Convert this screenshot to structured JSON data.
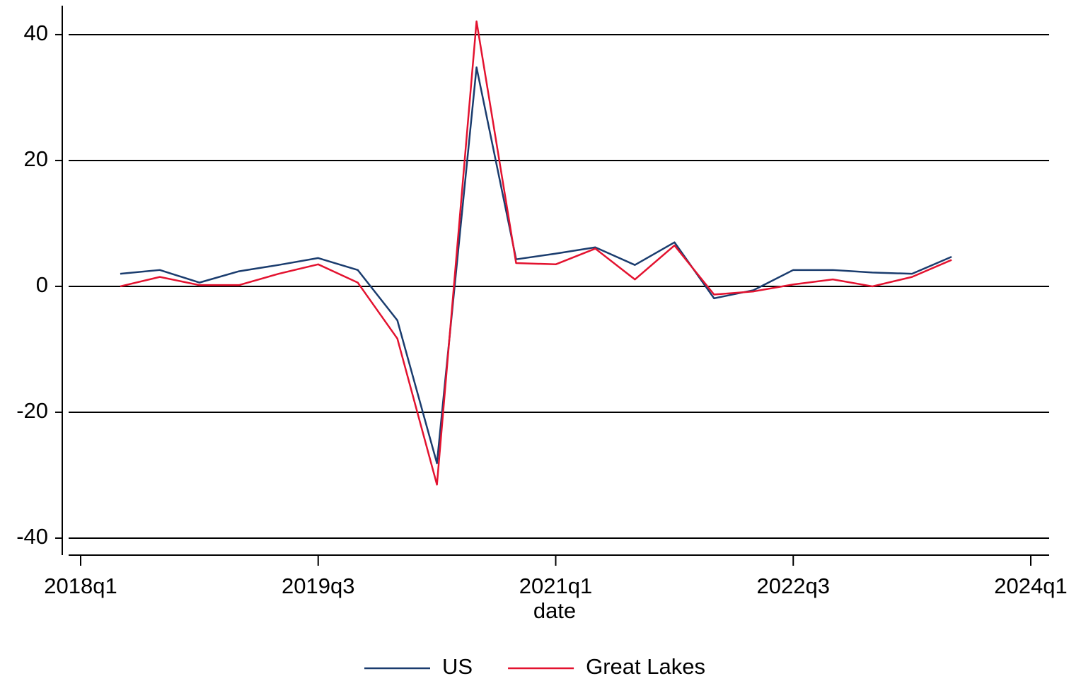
{
  "chart_data": {
    "type": "line",
    "x_label": "date",
    "x": [
      "2018q2",
      "2018q3",
      "2018q4",
      "2019q1",
      "2019q2",
      "2019q3",
      "2019q4",
      "2020q1",
      "2020q2",
      "2020q3",
      "2020q4",
      "2021q1",
      "2021q2",
      "2021q3",
      "2021q4",
      "2022q1",
      "2022q2",
      "2022q3",
      "2022q4",
      "2023q1",
      "2023q2",
      "2023q3"
    ],
    "series": [
      {
        "name": "US",
        "color": "#1a3c6e",
        "values": [
          2.0,
          2.6,
          0.6,
          2.4,
          3.4,
          4.5,
          2.6,
          -5.4,
          -28.1,
          34.8,
          4.3,
          5.2,
          6.2,
          3.4,
          7.0,
          -1.9,
          -0.6,
          2.6,
          2.6,
          2.2,
          2.0,
          4.7
        ]
      },
      {
        "name": "Great Lakes",
        "color": "#e3122f",
        "values": [
          0.0,
          1.5,
          0.2,
          0.2,
          2.0,
          3.5,
          0.6,
          -8.3,
          -31.5,
          42.1,
          3.7,
          3.5,
          6.0,
          1.1,
          6.5,
          -1.3,
          -0.8,
          0.3,
          1.1,
          0.0,
          1.5,
          4.2
        ]
      }
    ],
    "xlim": [
      "2018q1",
      "2024q1"
    ],
    "xticks": [
      "2018q1",
      "2019q3",
      "2021q1",
      "2022q3",
      "2024q1"
    ],
    "ylim": [
      -42.7,
      44.6
    ],
    "yticks": [
      -40,
      -20,
      0,
      20,
      40
    ],
    "grid": true,
    "legend": "bottom"
  }
}
